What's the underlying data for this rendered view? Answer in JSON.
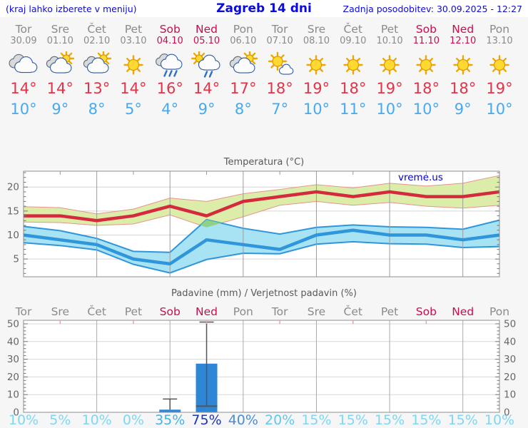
{
  "header": {
    "left": "(kraj lahko izberete v meniju)",
    "title": "Zagreb 14 dni",
    "right": "Zadnja posodobitev: 30.09.2025 - 12:27"
  },
  "colors": {
    "weekday_label": "#8a8a8a",
    "weekend_label": "#c5104f",
    "tmax_text": "#e23448",
    "tmin_text": "#45aaf0",
    "header_blue": "#0b0bdf"
  },
  "forecast": {
    "days": [
      {
        "name": "Tor",
        "date": "30.09",
        "weekend": false,
        "icon": "cloudy",
        "tmax": "14°",
        "tmin": "10°",
        "prob": "10%",
        "prob_color": "#7dd7f3"
      },
      {
        "name": "Sre",
        "date": "01.10",
        "weekend": false,
        "icon": "partly-cloudy",
        "tmax": "14°",
        "tmin": "9°",
        "prob": "5%",
        "prob_color": "#7dd7f3"
      },
      {
        "name": "Čet",
        "date": "02.10",
        "weekend": false,
        "icon": "partly-cloudy",
        "tmax": "13°",
        "tmin": "8°",
        "prob": "10%",
        "prob_color": "#7dd7f3"
      },
      {
        "name": "Pet",
        "date": "03.10",
        "weekend": false,
        "icon": "sunny",
        "tmax": "14°",
        "tmin": "5°",
        "prob": "0%",
        "prob_color": "#7dd7f3"
      },
      {
        "name": "Sob",
        "date": "04.10",
        "weekend": true,
        "icon": "rain",
        "tmax": "16°",
        "tmin": "4°",
        "prob": "35%",
        "prob_color": "#42b3e6"
      },
      {
        "name": "Ned",
        "date": "05.10",
        "weekend": true,
        "icon": "sun-shower",
        "tmax": "14°",
        "tmin": "9°",
        "prob": "75%",
        "prob_color": "#1d34b5"
      },
      {
        "name": "Pon",
        "date": "06.10",
        "weekend": false,
        "icon": "partly-cloudy",
        "tmax": "17°",
        "tmin": "8°",
        "prob": "40%",
        "prob_color": "#4a8cdb"
      },
      {
        "name": "Tor",
        "date": "07.10",
        "weekend": false,
        "icon": "mostly-sunny",
        "tmax": "18°",
        "tmin": "7°",
        "prob": "20%",
        "prob_color": "#5fc9ee"
      },
      {
        "name": "Sre",
        "date": "08.10",
        "weekend": false,
        "icon": "sunny",
        "tmax": "19°",
        "tmin": "10°",
        "prob": "15%",
        "prob_color": "#7dd7f3"
      },
      {
        "name": "Čet",
        "date": "09.10",
        "weekend": false,
        "icon": "sunny",
        "tmax": "18°",
        "tmin": "11°",
        "prob": "15%",
        "prob_color": "#7dd7f3"
      },
      {
        "name": "Pet",
        "date": "10.10",
        "weekend": false,
        "icon": "sunny",
        "tmax": "19°",
        "tmin": "10°",
        "prob": "15%",
        "prob_color": "#7dd7f3"
      },
      {
        "name": "Sob",
        "date": "11.10",
        "weekend": true,
        "icon": "sunny",
        "tmax": "18°",
        "tmin": "10°",
        "prob": "15%",
        "prob_color": "#7dd7f3"
      },
      {
        "name": "Ned",
        "date": "12.10",
        "weekend": true,
        "icon": "sunny",
        "tmax": "18°",
        "tmin": "9°",
        "prob": "15%",
        "prob_color": "#7dd7f3"
      },
      {
        "name": "Pon",
        "date": "13.10",
        "weekend": false,
        "icon": "sunny",
        "tmax": "19°",
        "tmin": "10°",
        "prob": "10%",
        "prob_color": "#7dd7f3"
      }
    ]
  },
  "chart_data": [
    {
      "type": "line",
      "title": "Temperatura (°C)",
      "watermark": "vreme.us",
      "x_dates": [
        "30.09",
        "01.10",
        "02.10",
        "03.10",
        "04.10",
        "05.10",
        "06.10",
        "07.10",
        "08.10",
        "09.10",
        "10.10",
        "11.10",
        "12.10",
        "13.10"
      ],
      "ylim": [
        1.3,
        23.3
      ],
      "yticks": [
        5,
        10,
        15,
        20
      ],
      "grid": true,
      "overlap_color": "#8fd287",
      "series": [
        {
          "name": "max-temperature",
          "color": "#d42a3d",
          "band_color": "#dcedaa",
          "band_edge_color": "#e8938c",
          "values": [
            14,
            14,
            13,
            14,
            16,
            14,
            17,
            18,
            19,
            18,
            19,
            18,
            18,
            19
          ],
          "band_upper": [
            15.9,
            15.7,
            14.4,
            15.4,
            17.7,
            17.0,
            18.6,
            19.5,
            20.5,
            19.8,
            20.8,
            20.2,
            20.8,
            22.4
          ],
          "band_lower": [
            12.7,
            12.6,
            12.0,
            12.3,
            14.2,
            11.6,
            13.8,
            16.2,
            17.0,
            16.2,
            16.8,
            16.0,
            15.6,
            16.2
          ]
        },
        {
          "name": "min-temperature",
          "color": "#2f96dc",
          "band_color": "#a8e3f4",
          "band_edge_color": "#2f96dc",
          "values": [
            10,
            9,
            8,
            5,
            4,
            9,
            8,
            7,
            10,
            11,
            10,
            10,
            9,
            10
          ],
          "band_upper": [
            11.8,
            10.9,
            9.3,
            6.6,
            6.4,
            13.2,
            11.4,
            10.2,
            11.6,
            12.1,
            11.7,
            11.6,
            11.2,
            13.1
          ],
          "band_lower": [
            8.4,
            7.8,
            6.9,
            3.9,
            2.1,
            4.9,
            6.2,
            6.1,
            8.1,
            8.6,
            8.2,
            8.1,
            7.4,
            7.6
          ]
        }
      ]
    },
    {
      "type": "bar",
      "title": "Padavine (mm) / Verjetnost padavin (%)",
      "categories": [
        "Tor",
        "Sre",
        "Čet",
        "Pet",
        "Sob",
        "Ned",
        "Pon",
        "Tor",
        "Sre",
        "Čet",
        "Pet",
        "Sob",
        "Ned",
        "Pon"
      ],
      "weekend": [
        false,
        false,
        false,
        false,
        true,
        true,
        false,
        false,
        false,
        false,
        false,
        true,
        true,
        false
      ],
      "values_mm": [
        0,
        0,
        0,
        0,
        1.5,
        27.5,
        0,
        0,
        0,
        0,
        0,
        0,
        0,
        0
      ],
      "range_low_mm": [
        null,
        null,
        null,
        null,
        null,
        3.5,
        null,
        null,
        null,
        null,
        null,
        null,
        null,
        null
      ],
      "range_high_mm": [
        null,
        null,
        null,
        null,
        7.5,
        51,
        null,
        null,
        null,
        null,
        null,
        null,
        null,
        null
      ],
      "probability_pct": [
        10,
        5,
        10,
        0,
        35,
        75,
        40,
        20,
        15,
        15,
        15,
        15,
        15,
        10
      ],
      "ylim": [
        0,
        52
      ],
      "yticks": [
        0,
        10,
        20,
        30,
        40,
        50
      ],
      "bar_color": "#2e86d6",
      "whisker_color": "#555555"
    }
  ]
}
